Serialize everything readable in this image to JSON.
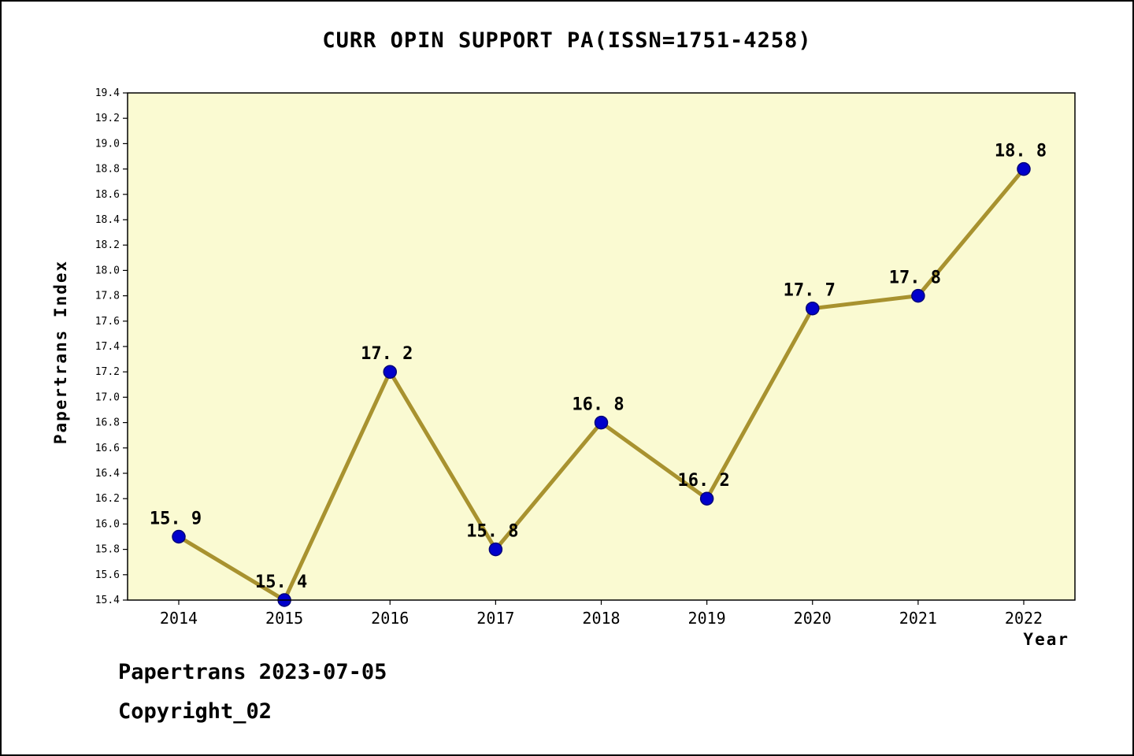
{
  "title": "CURR OPIN SUPPORT PA(ISSN=1751-4258)",
  "footer": {
    "line1": "Papertrans 2023-07-05",
    "line2": "Copyright_02"
  },
  "chart_data": {
    "type": "line",
    "x": [
      2014,
      2015,
      2016,
      2017,
      2018,
      2019,
      2020,
      2021,
      2022
    ],
    "values": [
      15.9,
      15.4,
      17.2,
      15.8,
      16.8,
      16.2,
      17.7,
      17.8,
      18.8
    ],
    "point_labels": [
      "15. 9",
      "15. 4",
      "17. 2",
      "15. 8",
      "16. 8",
      "16. 2",
      "17. 7",
      "17. 8",
      "18. 8"
    ],
    "title": "CURR OPIN SUPPORT PA(ISSN=1751-4258)",
    "xlabel": "Year",
    "ylabel": "Papertrans Index",
    "ylim": [
      15.4,
      19.4
    ],
    "ytick_step": 0.2,
    "legend": "none",
    "grid": false,
    "colors": {
      "line": "#A8922F",
      "marker_fill": "#0000CC",
      "marker_edge": "#00007A",
      "plot_bg": "#FAFAD2",
      "axis": "#000000",
      "text": "#000000"
    }
  }
}
